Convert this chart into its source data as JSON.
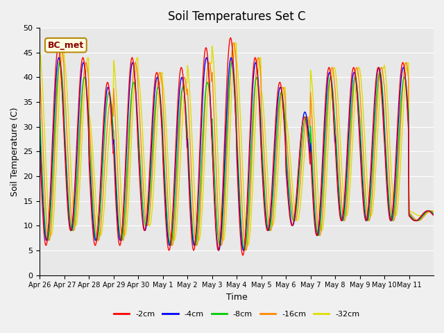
{
  "title": "Soil Temperatures Set C",
  "xlabel": "Time",
  "ylabel": "Soil Temperature (C)",
  "ylim": [
    0,
    50
  ],
  "yticks": [
    0,
    5,
    10,
    15,
    20,
    25,
    30,
    35,
    40,
    45,
    50
  ],
  "annotation": "BC_met",
  "bg_color": "#e8e8e8",
  "series_colors": [
    "#ff0000",
    "#0000ff",
    "#00cc00",
    "#ff8800",
    "#dddd00"
  ],
  "series_labels": [
    "-2cm",
    "-4cm",
    "-8cm",
    "-16cm",
    "-32cm"
  ],
  "day_labels": [
    "Apr 26",
    "Apr 27",
    "Apr 28",
    "Apr 29",
    "Apr 30",
    "May 1",
    "May 2",
    "May 3",
    "May 4",
    "May 5",
    "May 6",
    "May 7",
    "May 8",
    "May 9",
    "May 10",
    "May 11"
  ],
  "n_days": 16,
  "points_per_day": 48,
  "daily_peaks_2cm": [
    46,
    44,
    39,
    44,
    41,
    42,
    46,
    48,
    44,
    39,
    32,
    42,
    42,
    42,
    43,
    13
  ],
  "daily_troughs_2cm": [
    6,
    9,
    6,
    6,
    9,
    5,
    5,
    5,
    4,
    9,
    10,
    8,
    11,
    11,
    11,
    11
  ],
  "daily_peaks_4cm": [
    44,
    43,
    38,
    43,
    40,
    40,
    44,
    44,
    43,
    38,
    33,
    41,
    41,
    42,
    42,
    13
  ],
  "daily_troughs_4cm": [
    7,
    9,
    7,
    7,
    9,
    6,
    6,
    5,
    5,
    9,
    10,
    8,
    11,
    11,
    11,
    11
  ],
  "daily_peaks_8cm": [
    43,
    40,
    37,
    39,
    38,
    38,
    39,
    43,
    40,
    37,
    32,
    40,
    40,
    41,
    40,
    13
  ],
  "daily_troughs_8cm": [
    7,
    9,
    7,
    7,
    10,
    6,
    6,
    6,
    5,
    9,
    11,
    8,
    11,
    11,
    11,
    11
  ],
  "daily_peaks_16cm": [
    46,
    43,
    35,
    43,
    41,
    40,
    43,
    47,
    44,
    38,
    32,
    42,
    42,
    42,
    43,
    13
  ],
  "daily_troughs_16cm": [
    7,
    9,
    7,
    7,
    10,
    6,
    6,
    6,
    5,
    9,
    11,
    8,
    11,
    11,
    11,
    11
  ],
  "daily_peaks_32cm": [
    46,
    44,
    33,
    44,
    41,
    39,
    43,
    47,
    44,
    38,
    32,
    42,
    42,
    42,
    43,
    13
  ],
  "daily_troughs_32cm": [
    8,
    10,
    8,
    8,
    10,
    7,
    7,
    7,
    6,
    10,
    11,
    9,
    12,
    12,
    12,
    12
  ],
  "lag_hours": [
    0,
    0.5,
    1.5,
    3.0,
    5.0
  ]
}
